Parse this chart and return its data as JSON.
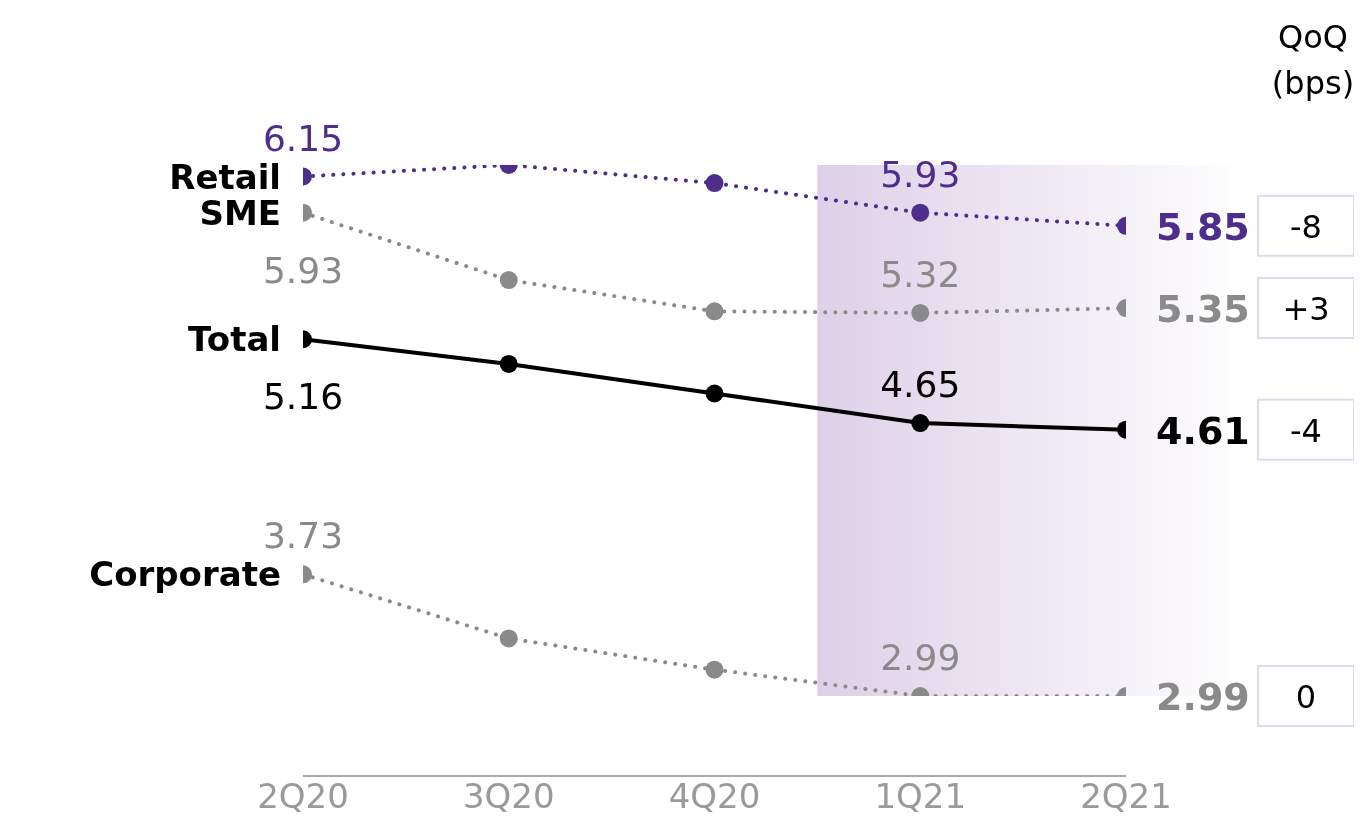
{
  "chart_data": {
    "type": "line",
    "categories": [
      "2Q20",
      "3Q20",
      "4Q20",
      "1Q21",
      "2Q21"
    ],
    "series": [
      {
        "name": "Retail",
        "color": "#4f2d8a",
        "line_style": "dotted",
        "values": [
          6.15,
          6.22,
          6.11,
          5.93,
          5.85
        ],
        "value_labels": [
          "6.15",
          null,
          null,
          "5.93",
          "5.85"
        ]
      },
      {
        "name": "SME",
        "color": "#8a8a8a",
        "line_style": "dotted",
        "values": [
          5.93,
          5.52,
          5.33,
          5.32,
          5.35
        ],
        "value_labels": [
          "5.93",
          null,
          null,
          "5.32",
          "5.35"
        ]
      },
      {
        "name": "Total",
        "color": "#000000",
        "line_style": "solid",
        "values": [
          5.16,
          5.01,
          4.83,
          4.65,
          4.61
        ],
        "value_labels": [
          "5.16",
          null,
          null,
          "4.65",
          "4.61"
        ]
      },
      {
        "name": "Corporate",
        "color": "#8a8a8a",
        "line_style": "dotted",
        "values": [
          3.73,
          3.34,
          3.15,
          2.99,
          2.99
        ],
        "value_labels": [
          "3.73",
          null,
          null,
          "2.99",
          "2.99"
        ]
      }
    ],
    "tick_labels": "x",
    "grid": false,
    "legend": false,
    "marker": "circle",
    "bands": [
      {
        "axis": "x",
        "from": "1Q21",
        "to": "2Q21",
        "color": "#ddd0e8"
      }
    ],
    "annotations": [
      "QoQ (bps)",
      "-8",
      "+3",
      "-4",
      "0"
    ]
  }
}
